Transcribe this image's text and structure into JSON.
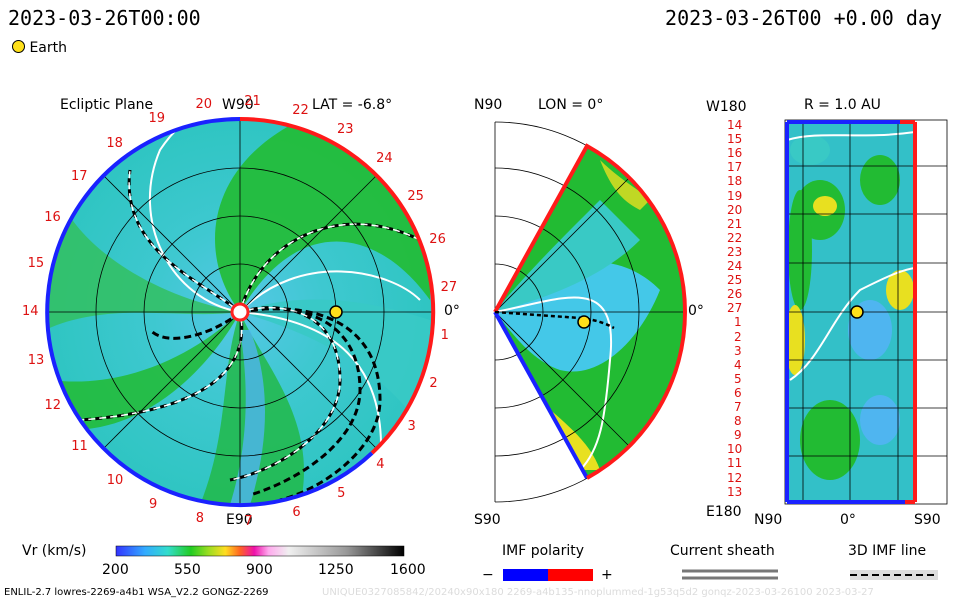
{
  "header": {
    "datetime_left": "2023-03-26T00:00",
    "datetime_right": "2023-03-26T00 +0.00 day",
    "legend_earth": "Earth"
  },
  "ecliptic": {
    "title": "Ecliptic Plane",
    "lat": "LAT = -6.8°",
    "top_label": "W90",
    "bottom_label": "E90",
    "right_label": "0°",
    "sectors": [
      "20",
      "21",
      "22",
      "23",
      "24",
      "25",
      "26",
      "27",
      "1",
      "2",
      "3",
      "4",
      "5",
      "6",
      "7",
      "8",
      "9",
      "10",
      "11",
      "12",
      "13",
      "14",
      "15",
      "16",
      "17",
      "18",
      "19"
    ]
  },
  "meridional": {
    "top_label": "N90",
    "lon": "LON = 0°",
    "bottom_label": "S90",
    "right_label": "0°"
  },
  "radial": {
    "title": "R = 1.0 AU",
    "top_label": "W180",
    "bottom_label": "E180",
    "axis_left": "N90",
    "axis_mid": "0°",
    "axis_right": "S90",
    "rows": [
      "14",
      "15",
      "16",
      "17",
      "18",
      "19",
      "20",
      "21",
      "22",
      "23",
      "24",
      "25",
      "26",
      "27",
      "1",
      "2",
      "3",
      "4",
      "5",
      "6",
      "7",
      "8",
      "9",
      "10",
      "11",
      "12",
      "13"
    ]
  },
  "colorbar": {
    "label": "Vr (km/s)",
    "ticks": [
      "200",
      "550",
      "900",
      "1250",
      "1600"
    ]
  },
  "imf": {
    "title": "IMF polarity",
    "minus": "−",
    "plus": "+",
    "minus_color": "#0000ff",
    "plus_color": "#ff0000"
  },
  "sheath": {
    "title": "Current sheath"
  },
  "imf_line": {
    "title": "3D IMF line"
  },
  "footer": {
    "left": "ENLIL-2.7 lowres-2269-a4b1 WSA_V2.2 GONGZ-2269",
    "watermark": "UNIQUE0327085842/20240x90x180 2269-a4b135-nnoplummed-1g53q5d2 gonqz-2023-03-26100   2023-03-27"
  },
  "colors": {
    "background_green": "#22bb22",
    "slow_wind_cyan": "#33ccdd",
    "fast_wind_yellow": "#e8e020",
    "earth": "#ffe01a"
  }
}
